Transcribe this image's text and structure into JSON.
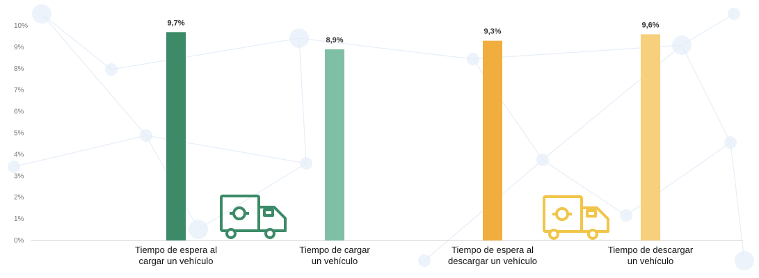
{
  "chart_data": {
    "type": "bar",
    "categories": [
      [
        "Tiempo de espera al",
        "cargar un vehículo"
      ],
      [
        "Tiempo de cargar",
        "un vehículo"
      ],
      [
        "Tiempo de espera al",
        "descargar un vehículo"
      ],
      [
        "Tiempo de descargar",
        "un vehículo"
      ]
    ],
    "values": [
      9.7,
      8.9,
      9.3,
      9.6
    ],
    "value_labels": [
      "9,7%",
      "8,9%",
      "9,3%",
      "9,6%"
    ],
    "bar_colors": [
      "#3d8a68",
      "#7fbfa6",
      "#f1ad3d",
      "#f6d07c"
    ],
    "ylim": [
      0,
      10
    ],
    "yticks": [
      "0%",
      "1%",
      "2%",
      "3%",
      "4%",
      "5%",
      "6%",
      "7%",
      "8%",
      "9%",
      "10%"
    ],
    "title": "",
    "xlabel": "",
    "ylabel": "",
    "grid": false,
    "legend": "none"
  },
  "decorations": {
    "truck_icons": [
      {
        "name": "green-truck-icon",
        "color": "#3d8a68"
      },
      {
        "name": "yellow-truck-icon",
        "color": "#f0c54a"
      }
    ],
    "network_background_color": "#e6eef8"
  }
}
